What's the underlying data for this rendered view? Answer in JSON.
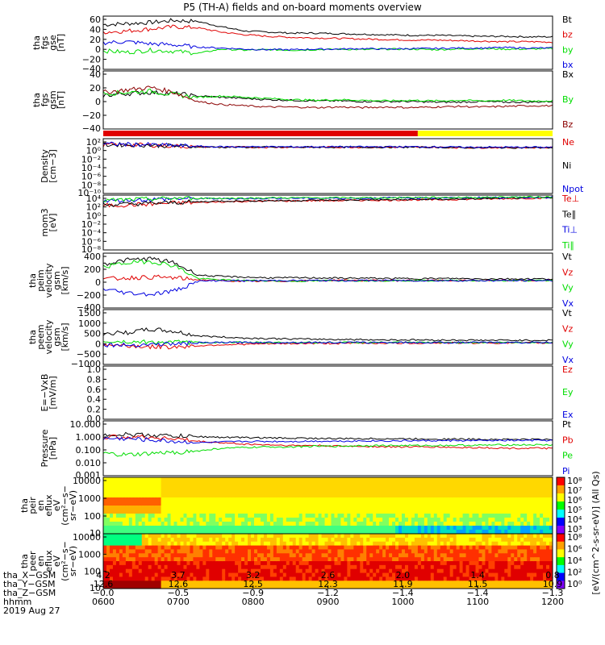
{
  "title": "P5 (TH-A) fields and on-board moments overview",
  "colors": {
    "black": "#000000",
    "red": "#e00000",
    "green": "#00dd00",
    "blue": "#0000e0",
    "darkred": "#8b0000",
    "yellow": "#ffff00"
  },
  "chart_data": [
    {
      "type": "line",
      "ylabel": [
        "tha",
        "fgs",
        "gse",
        "[nT]"
      ],
      "yticks": [
        "60",
        "40",
        "20",
        "0",
        "−20",
        "−40"
      ],
      "ylim": [
        -40,
        60
      ],
      "series": [
        {
          "name": "Bt",
          "color": "#000000",
          "values": [
            44,
            46,
            48,
            52,
            50,
            40,
            32,
            30,
            28,
            28,
            27,
            26,
            25,
            24,
            24,
            23,
            22,
            22,
            21,
            21
          ]
        },
        {
          "name": "bz",
          "color": "#e00000",
          "values": [
            30,
            32,
            36,
            40,
            38,
            30,
            25,
            22,
            20,
            19,
            18,
            17,
            16,
            15,
            15,
            14,
            13,
            12,
            12,
            11
          ]
        },
        {
          "name": "by",
          "color": "#00dd00",
          "values": [
            -5,
            -8,
            -4,
            -6,
            -10,
            -2,
            -4,
            -3,
            -4,
            -3,
            -2,
            -3,
            -2,
            -2,
            -3,
            -2,
            -1,
            -2,
            -2,
            -1
          ]
        },
        {
          "name": "bx",
          "color": "#0000e0",
          "values": [
            10,
            12,
            8,
            6,
            2,
            0,
            -2,
            -3,
            -3,
            -2,
            -2,
            -1,
            -2,
            -1,
            -1,
            0,
            0,
            1,
            0,
            0
          ]
        }
      ]
    },
    {
      "type": "line",
      "ylabel": [
        "tha",
        "fgs",
        "gsm",
        "[nT]"
      ],
      "yticks": [
        "40",
        "20",
        "0",
        "−20",
        "−40"
      ],
      "ylim": [
        -50,
        45
      ],
      "series": [
        {
          "name": "Bx",
          "color": "#000000",
          "values": [
            5,
            8,
            10,
            8,
            4,
            2,
            0,
            -2,
            -3,
            -4,
            -4,
            -5,
            -5,
            -5,
            -6,
            -6,
            -5,
            -6,
            -6,
            -5
          ]
        },
        {
          "name": "By",
          "color": "#00dd00",
          "values": [
            8,
            10,
            12,
            6,
            2,
            4,
            2,
            0,
            -2,
            -3,
            -2,
            -3,
            -4,
            -3,
            -4,
            -3,
            -4,
            -3,
            -4,
            -4
          ]
        },
        {
          "name": "Bz",
          "color": "#8b0000",
          "values": [
            10,
            14,
            18,
            10,
            -5,
            -10,
            -12,
            -14,
            -14,
            -15,
            -14,
            -15,
            -14,
            -15,
            -14,
            -13,
            -14,
            -13,
            -12,
            -12
          ]
        }
      ]
    },
    {
      "type": "line",
      "ylabel": [
        "Density",
        "[cm−3]"
      ],
      "yticks": [
        "10²",
        "10⁰",
        "10⁻²",
        "10⁻⁴",
        "10⁻⁶",
        "10⁻⁸",
        "10⁻¹⁰"
      ],
      "ylim": [
        -11,
        2.5
      ],
      "log": true,
      "series": [
        {
          "name": "Ne",
          "color": "#e00000",
          "values": [
            1.0,
            1.0,
            0.9,
            0.7,
            0.5,
            0.4,
            0.4,
            0.4,
            0.4,
            0.4,
            0.4,
            0.4,
            0.4,
            0.4,
            0.4,
            0.3,
            0.3,
            0.3,
            0.3,
            0.3
          ]
        },
        {
          "name": "Ni",
          "color": "#000000",
          "values": [
            1.0,
            1.0,
            0.9,
            0.7,
            0.5,
            0.4,
            0.4,
            0.4,
            0.4,
            0.4,
            0.4,
            0.4,
            0.4,
            0.4,
            0.4,
            0.3,
            0.3,
            0.3,
            0.3,
            0.3
          ]
        },
        {
          "name": "Npot",
          "color": "#0000e0",
          "values": [
            1.2,
            1.1,
            1.0,
            0.8,
            0.6,
            0.5,
            0.5,
            0.5,
            0.5,
            0.5,
            0.5,
            0.5,
            0.5,
            0.5,
            0.5,
            0.4,
            0.4,
            0.4,
            0.4,
            0.4
          ]
        }
      ]
    },
    {
      "type": "line",
      "ylabel": [
        "mom3",
        "[eV]"
      ],
      "yticks": [
        "10⁴",
        "10²",
        "10⁰",
        "10⁻²",
        "10⁻⁴",
        "10⁻⁶",
        "10⁻⁸"
      ],
      "ylim": [
        -9.5,
        4.5
      ],
      "log": true,
      "series": [
        {
          "name": "Te⊥",
          "color": "#e00000",
          "values": [
            1.8,
            2.0,
            2.2,
            2.5,
            2.6,
            2.8,
            2.9,
            3.0,
            3.0,
            3.1,
            3.1,
            3.2,
            3.2,
            3.3,
            3.3,
            3.4,
            3.5,
            3.6,
            3.7,
            3.8
          ]
        },
        {
          "name": "Te∥",
          "color": "#000000",
          "values": [
            2.0,
            2.2,
            2.4,
            2.6,
            2.8,
            3.0,
            3.0,
            3.1,
            3.1,
            3.2,
            3.2,
            3.3,
            3.3,
            3.4,
            3.4,
            3.5,
            3.6,
            3.7,
            3.8,
            3.9
          ]
        },
        {
          "name": "Ti⊥",
          "color": "#0000e0",
          "values": [
            3.0,
            3.2,
            3.4,
            3.6,
            3.6,
            3.6,
            3.6,
            3.7,
            3.7,
            3.7,
            3.7,
            3.7,
            3.8,
            3.8,
            3.8,
            3.8,
            3.9,
            3.9,
            3.9,
            4.0
          ]
        },
        {
          "name": "Ti∥",
          "color": "#00dd00",
          "values": [
            3.1,
            3.3,
            3.5,
            3.7,
            3.7,
            3.7,
            3.7,
            3.8,
            3.8,
            3.8,
            3.8,
            3.8,
            3.8,
            3.9,
            3.9,
            3.9,
            3.9,
            4.0,
            4.0,
            4.0
          ]
        }
      ]
    },
    {
      "type": "line",
      "ylabel": [
        "tha",
        "peim",
        "velocity",
        "gsm",
        "[km/s]"
      ],
      "yticks": [
        "400",
        "200",
        "0",
        "−200",
        "−400"
      ],
      "ylim": [
        -400,
        400
      ],
      "series": [
        {
          "name": "Vt",
          "color": "#000000",
          "values": [
            240,
            300,
            320,
            260,
            80,
            60,
            50,
            40,
            40,
            40,
            35,
            35,
            30,
            30,
            30,
            30,
            25,
            25,
            25,
            25
          ]
        },
        {
          "name": "Vz",
          "color": "#e00000",
          "values": [
            20,
            40,
            50,
            40,
            10,
            0,
            -10,
            -10,
            -5,
            0,
            5,
            0,
            0,
            0,
            0,
            0,
            0,
            0,
            0,
            0
          ]
        },
        {
          "name": "Vy",
          "color": "#00dd00",
          "values": [
            200,
            260,
            280,
            220,
            30,
            10,
            0,
            0,
            -10,
            -5,
            0,
            0,
            0,
            0,
            0,
            0,
            0,
            0,
            0,
            0
          ]
        },
        {
          "name": "Vx",
          "color": "#0000e0",
          "values": [
            -120,
            -180,
            -200,
            -150,
            -10,
            0,
            -5,
            0,
            0,
            0,
            0,
            0,
            0,
            0,
            0,
            0,
            0,
            0,
            0,
            0
          ]
        }
      ]
    },
    {
      "type": "line",
      "ylabel": [
        "tha",
        "peem",
        "velocity",
        "gsm",
        "[km/s]"
      ],
      "yticks": [
        "1500",
        "1000",
        "500",
        "0",
        "−500",
        "−1000"
      ],
      "ylim": [
        -1000,
        1500
      ],
      "series": [
        {
          "name": "Vt",
          "color": "#000000",
          "values": [
            400,
            450,
            600,
            500,
            300,
            250,
            200,
            180,
            160,
            150,
            140,
            130,
            120,
            120,
            110,
            110,
            100,
            100,
            100,
            100
          ]
        },
        {
          "name": "Vz",
          "color": "#e00000",
          "values": [
            -100,
            -150,
            -200,
            -200,
            -150,
            -100,
            -80,
            -60,
            -50,
            -40,
            -40,
            -30,
            -30,
            -30,
            -20,
            -20,
            -20,
            -20,
            -20,
            -20
          ]
        },
        {
          "name": "Vy",
          "color": "#00dd00",
          "values": [
            50,
            30,
            20,
            10,
            0,
            0,
            0,
            0,
            0,
            0,
            0,
            0,
            0,
            0,
            0,
            0,
            0,
            0,
            0,
            0
          ]
        },
        {
          "name": "Vx",
          "color": "#0000e0",
          "values": [
            -100,
            -120,
            -80,
            -60,
            -20,
            0,
            0,
            0,
            0,
            0,
            0,
            0,
            0,
            0,
            0,
            0,
            0,
            0,
            0,
            0
          ]
        }
      ]
    },
    {
      "type": "line",
      "ylabel": [
        "E=−VxB",
        "[mV/m]"
      ],
      "yticks": [
        "1.0",
        "0.8",
        "0.6",
        "0.4",
        "0.2",
        "0.0"
      ],
      "ylim": [
        0,
        1
      ],
      "series": [
        {
          "name": "Ez",
          "color": "#e00000",
          "values": []
        },
        {
          "name": "Ey",
          "color": "#00dd00",
          "values": []
        },
        {
          "name": "Ex",
          "color": "#0000e0",
          "values": []
        }
      ]
    },
    {
      "type": "line",
      "ylabel": [
        "Pressure",
        "[nPa]"
      ],
      "yticks": [
        "10.000",
        "1.000",
        "0.100",
        "0.010",
        "0.001"
      ],
      "ylim": [
        -3,
        1
      ],
      "log": true,
      "series": [
        {
          "name": "Pt",
          "color": "#000000",
          "values": [
            0.0,
            0.0,
            -0.05,
            -0.1,
            -0.15,
            -0.2,
            -0.22,
            -0.25,
            -0.26,
            -0.28,
            -0.3,
            -0.3,
            -0.3,
            -0.32,
            -0.32,
            -0.33,
            -0.34,
            -0.35,
            -0.35,
            -0.36
          ]
        },
        {
          "name": "Pb",
          "color": "#e00000",
          "values": [
            -0.2,
            -0.15,
            -0.2,
            -0.3,
            -0.5,
            -0.6,
            -0.7,
            -0.75,
            -0.8,
            -0.8,
            -0.85,
            -0.85,
            -0.9,
            -0.9,
            -0.9,
            -0.95,
            -0.95,
            -1.0,
            -1.0,
            -1.0
          ]
        },
        {
          "name": "Pe",
          "color": "#00dd00",
          "values": [
            -1.4,
            -1.5,
            -1.4,
            -1.3,
            -1.2,
            -1.0,
            -0.95,
            -0.9,
            -0.9,
            -0.85,
            -0.85,
            -0.8,
            -0.8,
            -0.8,
            -0.8,
            -0.78,
            -0.78,
            -0.75,
            -0.75,
            -0.75
          ]
        },
        {
          "name": "Pi",
          "color": "#0000e0",
          "values": [
            -0.3,
            -0.3,
            -0.4,
            -0.5,
            -0.6,
            -0.55,
            -0.5,
            -0.5,
            -0.5,
            -0.48,
            -0.48,
            -0.46,
            -0.46,
            -0.45,
            -0.45,
            -0.44,
            -0.44,
            -0.43,
            -0.43,
            -0.42
          ]
        }
      ]
    },
    {
      "type": "heatmap",
      "ylabel": [
        "tha",
        "peir",
        "en",
        "eflux",
        "eV",
        "(cm²−s−",
        "sr−eV)"
      ],
      "yticks": [
        "10000",
        "1000",
        "100",
        "10"
      ],
      "colorbar_ticks": [
        "10⁸",
        "10⁷",
        "10⁶",
        "10⁵",
        "10⁴",
        "10³"
      ],
      "colorbar_label": "[eV/(cm^2-s-sr-eV)] (All Qs)"
    },
    {
      "type": "heatmap",
      "ylabel": [
        "tha",
        "peer",
        "en",
        "eflux",
        "eV",
        "(cm²−s−",
        "sr−eV)"
      ],
      "yticks": [
        "10000",
        "1000",
        "100",
        "10"
      ],
      "colorbar_ticks": [
        "10⁸",
        "10⁶",
        "10⁴",
        "10²",
        "10⁰"
      ],
      "colorbar_label": "[eV/(cm^2-s-sr-eV)] (All Qs)"
    }
  ],
  "xaxis": {
    "rows": [
      {
        "label": "tha_X−GSM",
        "values": [
          "4.2",
          "3.7",
          "3.2",
          "2.6",
          "2.0",
          "1.4",
          "0.8"
        ]
      },
      {
        "label": "tha_Y−GSM",
        "values": [
          "12.6",
          "12.6",
          "12.5",
          "12.3",
          "11.9",
          "11.5",
          "10.9"
        ]
      },
      {
        "label": "tha_Z−GSM",
        "values": [
          "−0.0",
          "−0.5",
          "−0.9",
          "−1.2",
          "−1.4",
          "−1.4",
          "−1.3"
        ]
      },
      {
        "label": "hhmm",
        "values": [
          "0600",
          "0700",
          "0800",
          "0900",
          "1000",
          "1100",
          "1200"
        ]
      }
    ],
    "date": "2019 Aug 27"
  },
  "mode_bar": {
    "colors": [
      "#e00000",
      "#ffff00"
    ],
    "switch_fraction": 0.7
  }
}
